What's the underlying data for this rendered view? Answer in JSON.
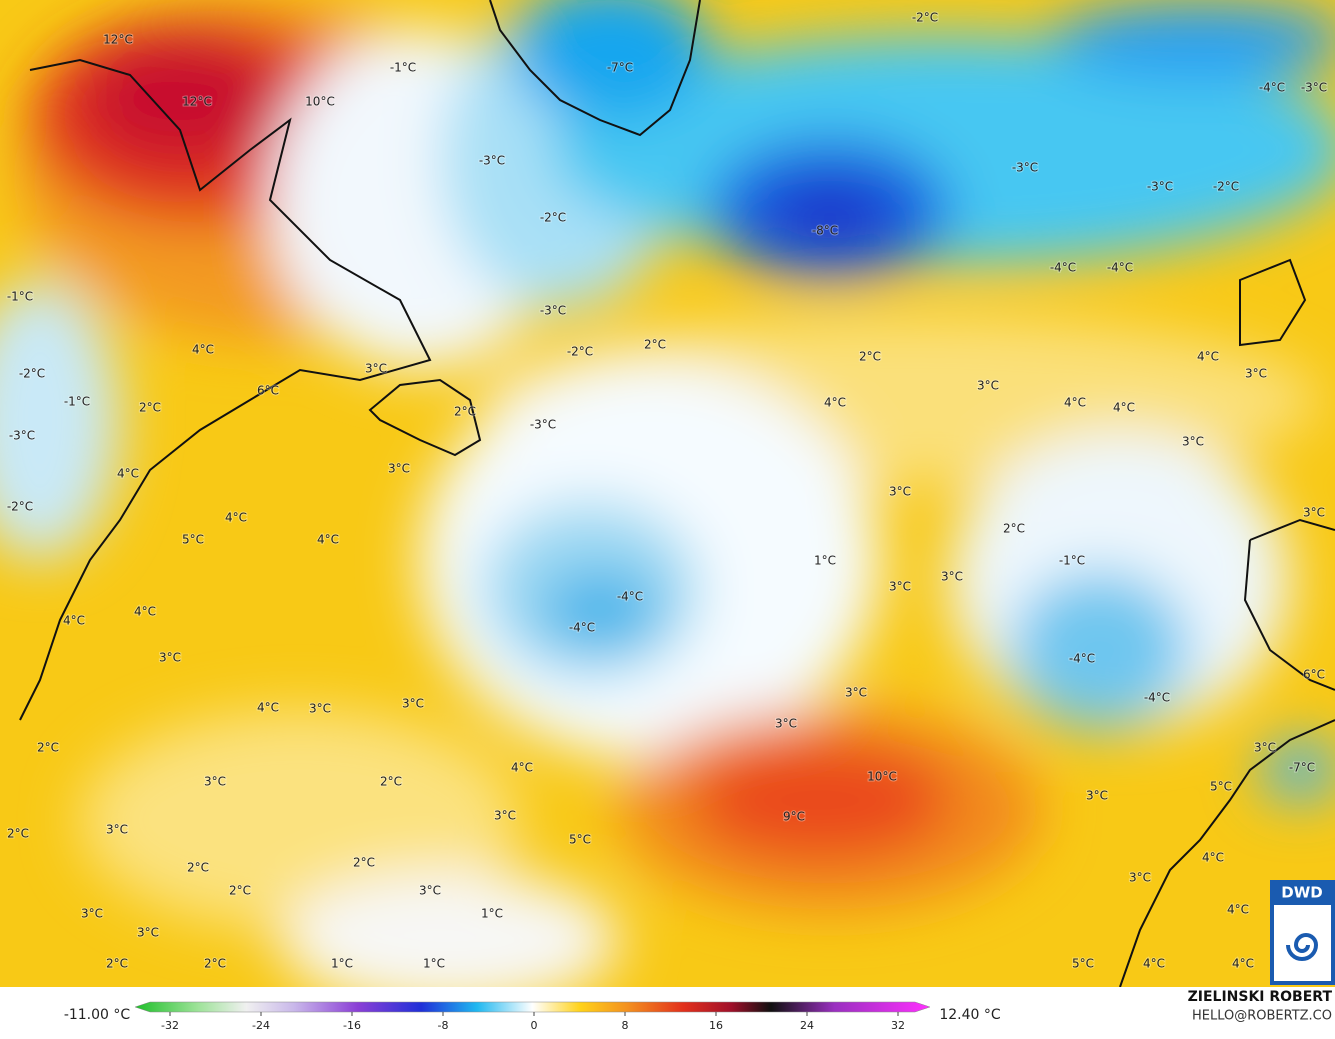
{
  "map": {
    "labels": [
      "12°C",
      "12°C",
      "10°C",
      "-1°C",
      "-3°C",
      "-2°C",
      "-3°C",
      "-2°C",
      "2°C",
      "-3°C",
      "2°C",
      "4°C",
      "3°C",
      "6°C",
      "-2°C",
      "-1°C",
      "2°C",
      "-1°C",
      "-3°C",
      "4°C",
      "-2°C",
      "4°C",
      "3°C",
      "5°C",
      "4°C",
      "4°C",
      "4°C",
      "3°C",
      "4°C",
      "3°C",
      "3°C",
      "2°C",
      "3°C",
      "2°C",
      "4°C",
      "3°C",
      "2°C",
      "3°C",
      "5°C",
      "2°C",
      "2°C",
      "2°C",
      "3°C",
      "1°C",
      "3°C",
      "3°C",
      "2°C",
      "2°C",
      "1°C",
      "1°C",
      "-7°C",
      "-2°C",
      "-4°C",
      "-3°C",
      "-3°C",
      "-3°C",
      "-2°C",
      "-8°C",
      "-4°C",
      "-4°C",
      "2°C",
      "4°C",
      "3°C",
      "3°C",
      "4°C",
      "4°C",
      "4°C",
      "3°C",
      "3°C",
      "2°C",
      "3°C",
      "1°C",
      "-1°C",
      "3°C",
      "3°C",
      "-4°C",
      "-4°C",
      "-4°C",
      "3°C",
      "3°C",
      "-4°C",
      "6°C",
      "10°C",
      "9°C",
      "3°C",
      "-7°C",
      "3°C",
      "5°C",
      "4°C",
      "3°C",
      "4°C",
      "5°C",
      "4°C",
      "4°C"
    ]
  },
  "colorbar": {
    "min_label": "-11.00 °C",
    "max_label": "12.40 °C",
    "ticks": [
      -32,
      -24,
      -16,
      -8,
      0,
      8,
      16,
      24,
      32
    ]
  },
  "credit": {
    "author": "ZIELINSKI ROBERT",
    "email": "HELLO@ROBERTZ.CO",
    "logo": "DWD"
  }
}
